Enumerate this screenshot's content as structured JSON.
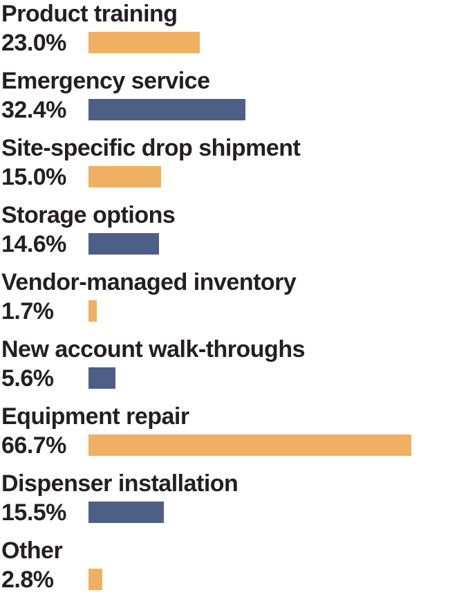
{
  "chart_data": {
    "type": "bar",
    "orientation": "horizontal",
    "title": "",
    "xlabel": "",
    "ylabel": "",
    "xlim": [
      0,
      100
    ],
    "categories": [
      "Product training",
      "Emergency service",
      "Site-specific drop shipment",
      "Storage options",
      "Vendor-managed inventory",
      "New account walk-throughs",
      "Equipment repair",
      "Dispenser installation",
      "Other"
    ],
    "values": [
      23.0,
      32.4,
      15.0,
      14.6,
      1.7,
      5.6,
      66.7,
      15.5,
      2.8
    ],
    "value_labels": [
      "23.0%",
      "32.4%",
      "15.0%",
      "14.6%",
      "1.7%",
      "5.6%",
      "66.7%",
      "15.5%",
      "2.8%"
    ],
    "colors": [
      "#f0b064",
      "#4e5f87",
      "#f0b064",
      "#4e5f87",
      "#f0b064",
      "#4e5f87",
      "#f0b064",
      "#4e5f87",
      "#f0b064"
    ],
    "grid": false,
    "legend": "none"
  }
}
